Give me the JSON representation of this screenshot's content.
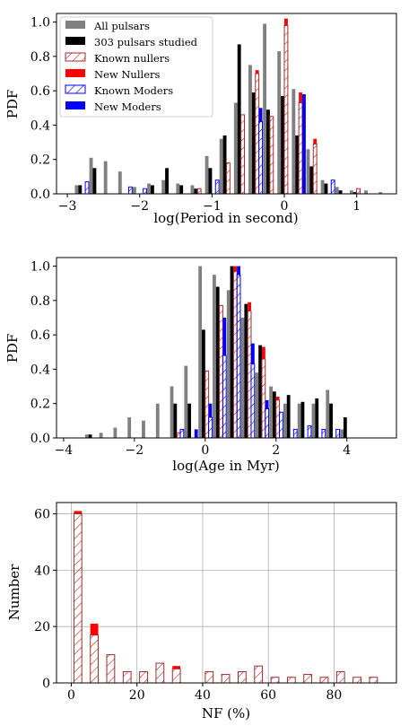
{
  "colors": {
    "all": "#808080",
    "studied": "#000000",
    "known_nuller": "#a52a2a",
    "new_nuller": "#ff0000",
    "known_moder": "#0000ff",
    "new_moder": "#0000ff",
    "grid": "#b0b0b0"
  },
  "legend": {
    "all": "All pulsars",
    "studied": "303 pulsars studied",
    "known_nullers": "Known nullers",
    "new_nullers": "New Nullers",
    "known_moders": "Known Moders",
    "new_moders": "New Moders"
  },
  "chart_data": [
    {
      "type": "bar",
      "title": "",
      "xlabel": "log(Period in second)",
      "ylabel": "PDF",
      "xlim": [
        -3.15,
        1.55
      ],
      "ylim": [
        0,
        1.05
      ],
      "xticks": [
        "-3",
        "-2",
        "-1",
        "0",
        "1"
      ],
      "yticks": [
        "0.0",
        "0.2",
        "0.4",
        "0.6",
        "0.8",
        "1.0"
      ],
      "grid": false,
      "legend_position": "top-left",
      "bin_width": 0.2,
      "bin_centers": [
        -2.8,
        -2.6,
        -2.4,
        -2.2,
        -2.0,
        -1.8,
        -1.6,
        -1.4,
        -1.2,
        -1.0,
        -0.8,
        -0.6,
        -0.4,
        -0.2,
        0.0,
        0.2,
        0.4,
        0.6,
        0.8,
        1.0,
        1.2,
        1.4
      ],
      "series": [
        {
          "name": "All pulsars",
          "values": [
            0.05,
            0.21,
            0.19,
            0.13,
            0.04,
            0.06,
            0.08,
            0.06,
            0.05,
            0.22,
            0.32,
            0.53,
            0.75,
            0.99,
            0.83,
            0.61,
            0.26,
            0.08,
            0.04,
            0.02,
            0.02,
            0.01
          ]
        },
        {
          "name": "303 pulsars studied",
          "values": [
            0.05,
            0.15,
            0.0,
            0.0,
            0.0,
            0.05,
            0.15,
            0.05,
            0.03,
            0.15,
            0.34,
            0.87,
            0.59,
            0.49,
            0.57,
            0.34,
            0.16,
            0.06,
            0.02,
            0.01,
            0.0,
            0.0
          ]
        },
        {
          "name": "Known nullers",
          "values": [
            0.0,
            0.0,
            0.0,
            0.0,
            0.0,
            0.0,
            0.0,
            0.0,
            0.03,
            0.0,
            0.18,
            0.46,
            0.7,
            0.45,
            0.98,
            0.53,
            0.29,
            0.0,
            0.0,
            0.03,
            0.0,
            0.0
          ]
        },
        {
          "name": "New Nullers",
          "values": [
            0.0,
            0.0,
            0.0,
            0.0,
            0.0,
            0.0,
            0.0,
            0.0,
            0.0,
            0.0,
            0.0,
            0.0,
            0.02,
            0.0,
            0.04,
            0.06,
            0.03,
            0.0,
            0.0,
            0.0,
            0.0,
            0.0
          ]
        },
        {
          "name": "Known Moders",
          "values": [
            0.07,
            0.0,
            0.0,
            0.04,
            0.03,
            0.0,
            0.0,
            0.0,
            0.0,
            0.08,
            0.0,
            0.0,
            0.42,
            0.0,
            0.0,
            0.0,
            0.0,
            0.08,
            0.0,
            0.0,
            0.0,
            0.0
          ]
        },
        {
          "name": "New Moders",
          "values": [
            0.0,
            0.0,
            0.0,
            0.0,
            0.0,
            0.0,
            0.0,
            0.0,
            0.0,
            0.0,
            0.0,
            0.0,
            0.08,
            0.0,
            0.0,
            0.58,
            0.0,
            0.0,
            0.0,
            0.0,
            0.0,
            0.0
          ]
        }
      ]
    },
    {
      "type": "bar",
      "title": "",
      "xlabel": "log(Age in Myr)",
      "ylabel": "PDF",
      "xlim": [
        -4.2,
        5.4
      ],
      "ylim": [
        0,
        1.05
      ],
      "xticks": [
        "-4",
        "-2",
        "0",
        "2",
        "4"
      ],
      "yticks": [
        "0.0",
        "0.2",
        "0.4",
        "0.6",
        "0.8",
        "1.0"
      ],
      "grid": false,
      "legend_position": "none",
      "bin_width": 0.4,
      "bin_centers": [
        -3.2,
        -2.8,
        -2.4,
        -2.0,
        -1.6,
        -1.2,
        -0.8,
        -0.4,
        0.0,
        0.4,
        0.8,
        1.2,
        1.6,
        2.0,
        2.4,
        2.8,
        3.2,
        3.6,
        4.0,
        4.4
      ],
      "series": [
        {
          "name": "All pulsars",
          "values": [
            0.02,
            0.03,
            0.06,
            0.12,
            0.1,
            0.2,
            0.3,
            0.42,
            1.0,
            0.95,
            0.86,
            0.7,
            0.38,
            0.3,
            0.2,
            0.2,
            0.2,
            0.28,
            0.05,
            0.0
          ]
        },
        {
          "name": "303 pulsars studied",
          "values": [
            0.02,
            0.0,
            0.0,
            0.0,
            0.0,
            0.0,
            0.2,
            0.2,
            0.63,
            0.88,
            1.0,
            0.78,
            0.54,
            0.27,
            0.25,
            0.21,
            0.23,
            0.2,
            0.12,
            0.0
          ]
        },
        {
          "name": "Known nullers",
          "values": [
            0.0,
            0.0,
            0.0,
            0.0,
            0.0,
            0.0,
            0.03,
            0.0,
            0.39,
            0.77,
            0.97,
            0.74,
            0.46,
            0.22,
            0.0,
            0.0,
            0.0,
            0.0,
            0.0,
            0.0
          ]
        },
        {
          "name": "New Nullers",
          "values": [
            0.0,
            0.0,
            0.0,
            0.0,
            0.0,
            0.0,
            0.0,
            0.0,
            0.0,
            0.0,
            0.03,
            0.05,
            0.07,
            0.02,
            0.0,
            0.0,
            0.0,
            0.0,
            0.0,
            0.0
          ]
        },
        {
          "name": "Known Moders",
          "values": [
            0.0,
            0.0,
            0.0,
            0.0,
            0.0,
            0.0,
            0.05,
            0.0,
            0.12,
            0.48,
            0.95,
            0.43,
            0.17,
            0.15,
            0.05,
            0.07,
            0.05,
            0.05,
            0.0,
            0.0
          ]
        },
        {
          "name": "New Moders",
          "values": [
            0.0,
            0.0,
            0.0,
            0.0,
            0.0,
            0.0,
            0.0,
            0.05,
            0.08,
            0.22,
            0.05,
            0.12,
            0.05,
            0.0,
            0.0,
            0.0,
            0.0,
            0.0,
            0.0,
            0.0
          ]
        }
      ]
    },
    {
      "type": "bar",
      "title": "",
      "xlabel": "NF (%)",
      "ylabel": "Number",
      "xlim": [
        -4.5,
        99
      ],
      "ylim": [
        0,
        64
      ],
      "xticks": [
        "0",
        "20",
        "40",
        "60",
        "80"
      ],
      "yticks": [
        "0",
        "20",
        "40",
        "60"
      ],
      "grid": true,
      "legend_position": "none",
      "x": [
        2,
        7,
        12,
        17,
        22,
        27,
        32,
        37,
        42,
        47,
        52,
        57,
        62,
        67,
        72,
        77,
        82,
        87,
        92
      ],
      "bar_width": 2.4,
      "series": [
        {
          "name": "Known nullers",
          "values": [
            60,
            17,
            10,
            4,
            4,
            7,
            5,
            0,
            4,
            3,
            4,
            6,
            2,
            2,
            3,
            2,
            4,
            2,
            2
          ]
        },
        {
          "name": "New Nullers",
          "values": [
            1,
            4,
            0,
            0,
            0,
            0,
            1,
            0,
            0,
            0,
            0,
            0,
            0,
            0,
            0,
            0,
            0,
            0,
            0
          ]
        }
      ]
    }
  ]
}
